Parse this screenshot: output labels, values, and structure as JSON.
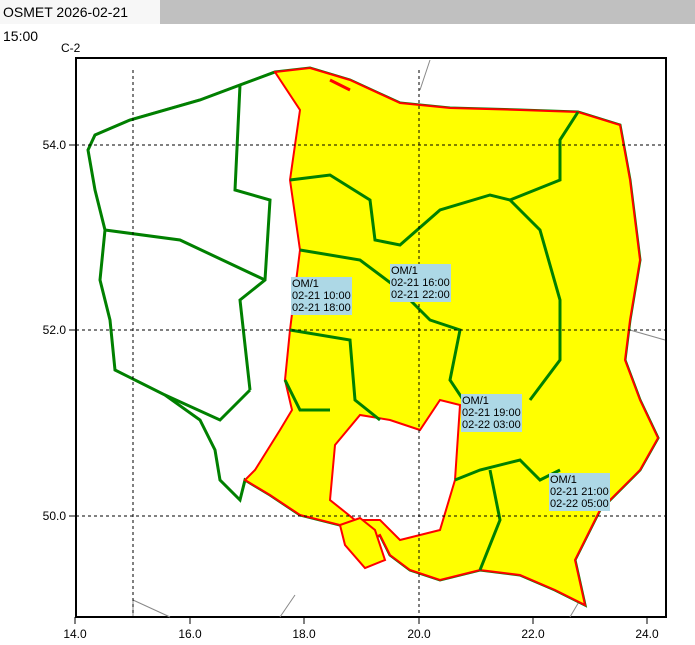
{
  "tab": {
    "title": "OSMET 2026-02-21 15:00"
  },
  "map": {
    "code": "C-2",
    "x_ticks": [
      "14.0",
      "16.0",
      "18.0",
      "20.0",
      "22.0",
      "24.0"
    ],
    "y_ticks": [
      "54.0",
      "52.0",
      "50.0"
    ],
    "colors": {
      "warning_fill": "#ffff00",
      "warning_border": "#ff0000",
      "admin_border": "#008000",
      "coast": "#808080",
      "label_bg": "#add8e6"
    },
    "warnings": [
      {
        "code": "OM/1",
        "from": "02-21 10:00",
        "to": "02-21 18:00"
      },
      {
        "code": "OM/1",
        "from": "02-21 16:00",
        "to": "02-21 22:00"
      },
      {
        "code": "OM/1",
        "from": "02-21 19:00",
        "to": "02-22 03:00"
      },
      {
        "code": "OM/1",
        "from": "02-21 21:00",
        "to": "02-22 05:00"
      }
    ]
  }
}
